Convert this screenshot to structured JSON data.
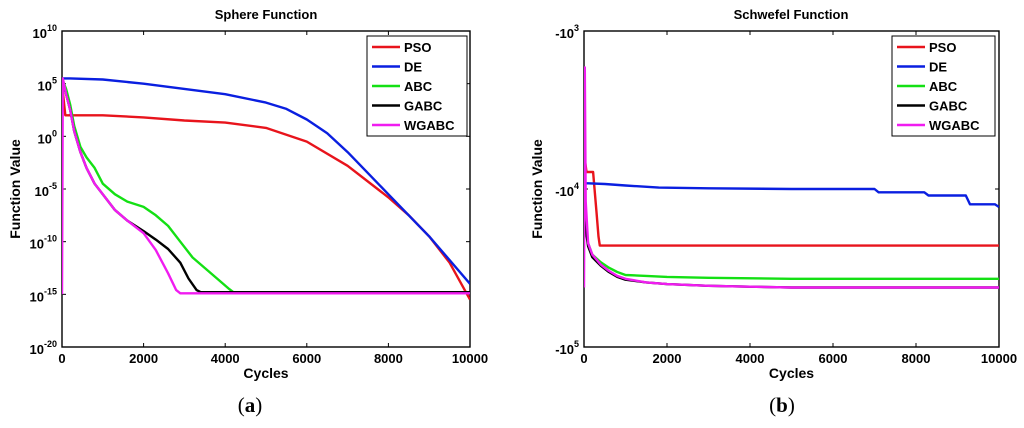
{
  "chart_data": [
    {
      "panel": "a",
      "type": "line",
      "title": "Sphere Function",
      "xlabel": "Cycles",
      "ylabel": "Function Value",
      "y_scale": "log",
      "xlim": [
        0,
        10000
      ],
      "ylim_exponent": [
        -20,
        10
      ],
      "x_ticks": [
        "0",
        "2000",
        "4000",
        "6000",
        "8000",
        "10000"
      ],
      "y_ticks": [
        {
          "exp": 10,
          "base": "10",
          "sup": "10"
        },
        {
          "exp": 5,
          "base": "10",
          "sup": "5"
        },
        {
          "exp": 0,
          "base": "10",
          "sup": "0"
        },
        {
          "exp": -5,
          "base": "10",
          "sup": "-5"
        },
        {
          "exp": -10,
          "base": "10",
          "sup": "-10"
        },
        {
          "exp": -15,
          "base": "10",
          "sup": "-15"
        },
        {
          "exp": -20,
          "base": "10",
          "sup": "-20"
        }
      ],
      "grid": false,
      "legend_position": "top-right",
      "series": [
        {
          "name": "PSO",
          "color": "#e8141c",
          "x": [
            0,
            80,
            150,
            1000,
            2000,
            3000,
            4000,
            5000,
            6000,
            7000,
            8000,
            8500,
            9000,
            9500,
            10000
          ],
          "y_exp": [
            5,
            2,
            2,
            2,
            1.8,
            1.5,
            1.3,
            0.8,
            -0.5,
            -2.8,
            -5.8,
            -7.5,
            -9.5,
            -12.0,
            -15.5
          ]
        },
        {
          "name": "DE",
          "color": "#0a1fe0",
          "x": [
            0,
            200,
            1000,
            2000,
            3000,
            4000,
            5000,
            5500,
            6000,
            6500,
            7000,
            7500,
            8000,
            9000,
            10000
          ],
          "y_exp": [
            5.5,
            5.5,
            5.4,
            5.0,
            4.5,
            4.0,
            3.2,
            2.6,
            1.6,
            0.3,
            -1.5,
            -3.5,
            -5.5,
            -9.5,
            -14
          ]
        },
        {
          "name": "ABC",
          "color": "#14e014",
          "x": [
            0,
            100,
            200,
            300,
            450,
            600,
            800,
            1000,
            1300,
            1600,
            2000,
            2300,
            2600,
            2900,
            3200,
            3500,
            3800,
            4100,
            4200,
            10000
          ],
          "y_exp": [
            5.5,
            4.5,
            3.0,
            1.0,
            -1.0,
            -2.0,
            -3.0,
            -4.5,
            -5.5,
            -6.2,
            -6.7,
            -7.5,
            -8.5,
            -10.0,
            -11.5,
            -12.5,
            -13.5,
            -14.5,
            -14.8,
            -14.8
          ]
        },
        {
          "name": "GABC",
          "color": "#000000",
          "x": [
            0,
            100,
            200,
            300,
            450,
            600,
            800,
            1000,
            1300,
            1600,
            2000,
            2300,
            2600,
            2900,
            3100,
            3300,
            3400,
            10000
          ],
          "y_exp": [
            5.5,
            4.0,
            2.5,
            0.5,
            -1.5,
            -3.0,
            -4.5,
            -5.5,
            -7.0,
            -8.0,
            -9.0,
            -9.8,
            -10.7,
            -12.0,
            -13.5,
            -14.6,
            -14.8,
            -14.8
          ]
        },
        {
          "name": "WGABC",
          "color": "#f01cf0",
          "x": [
            0,
            20,
            100,
            200,
            300,
            450,
            600,
            800,
            1000,
            1300,
            1600,
            2000,
            2300,
            2600,
            2800,
            2900,
            10000
          ],
          "y_exp": [
            -15,
            5.5,
            4.0,
            2.5,
            0.5,
            -1.5,
            -3.0,
            -4.5,
            -5.5,
            -7.0,
            -8.0,
            -9.2,
            -10.8,
            -13.0,
            -14.6,
            -14.9,
            -14.9
          ]
        }
      ]
    },
    {
      "panel": "b",
      "type": "line",
      "title": "Schwefel Function",
      "xlabel": "Cycles",
      "ylabel": "Function Value",
      "y_scale": "log (negative values)",
      "xlim": [
        0,
        10000
      ],
      "ylim": [
        -100000,
        -1000
      ],
      "x_ticks": [
        "0",
        "2000",
        "4000",
        "6000",
        "8000",
        "10000"
      ],
      "y_ticks": [
        {
          "exp": 3,
          "base": "-10",
          "sup": "3"
        },
        {
          "exp": 4,
          "base": "-10",
          "sup": "4"
        },
        {
          "exp": 5,
          "base": "-10",
          "sup": "5"
        }
      ],
      "grid": false,
      "legend_position": "top-right",
      "series": [
        {
          "name": "PSO",
          "color": "#e8141c",
          "x": [
            0,
            60,
            220,
            300,
            350,
            380,
            10000
          ],
          "y": [
            -5900,
            -7800,
            -7800,
            -14000,
            -20000,
            -22800,
            -22800
          ]
        },
        {
          "name": "DE",
          "color": "#0a1fe0",
          "x": [
            0,
            100,
            500,
            1000,
            1800,
            3000,
            5000,
            7000,
            7100,
            8200,
            8300,
            9200,
            9300,
            9900,
            10000
          ],
          "y": [
            -9200,
            -9200,
            -9300,
            -9500,
            -9800,
            -9900,
            -10000,
            -10000,
            -10500,
            -10500,
            -11000,
            -11000,
            -12500,
            -12500,
            -13000
          ]
        },
        {
          "name": "ABC",
          "color": "#14e014",
          "x": [
            0,
            100,
            200,
            400,
            600,
            800,
            1000,
            1500,
            2000,
            3000,
            5000,
            7000,
            10000
          ],
          "y": [
            -15000,
            -22000,
            -26000,
            -29000,
            -31500,
            -33500,
            -35000,
            -35500,
            -36000,
            -36500,
            -37000,
            -37000,
            -37000
          ]
        },
        {
          "name": "GABC",
          "color": "#000000",
          "x": [
            0,
            100,
            200,
            400,
            600,
            800,
            1000,
            1500,
            2000,
            3000,
            4000,
            5000,
            10000
          ],
          "y": [
            -15000,
            -23000,
            -27000,
            -30500,
            -33500,
            -36000,
            -37500,
            -39000,
            -40000,
            -41000,
            -41500,
            -42000,
            -42000
          ]
        },
        {
          "name": "WGABC",
          "color": "#f01cf0",
          "x": [
            0,
            20,
            40,
            100,
            200,
            400,
            600,
            800,
            1000,
            1500,
            2000,
            3000,
            4000,
            5000,
            10000
          ],
          "y": [
            -42000,
            -1700,
            -12000,
            -22000,
            -26000,
            -30000,
            -33000,
            -35500,
            -37000,
            -39000,
            -40000,
            -41000,
            -41500,
            -42000,
            -42000
          ]
        }
      ]
    }
  ],
  "captions": {
    "a": "a",
    "b": "b"
  }
}
